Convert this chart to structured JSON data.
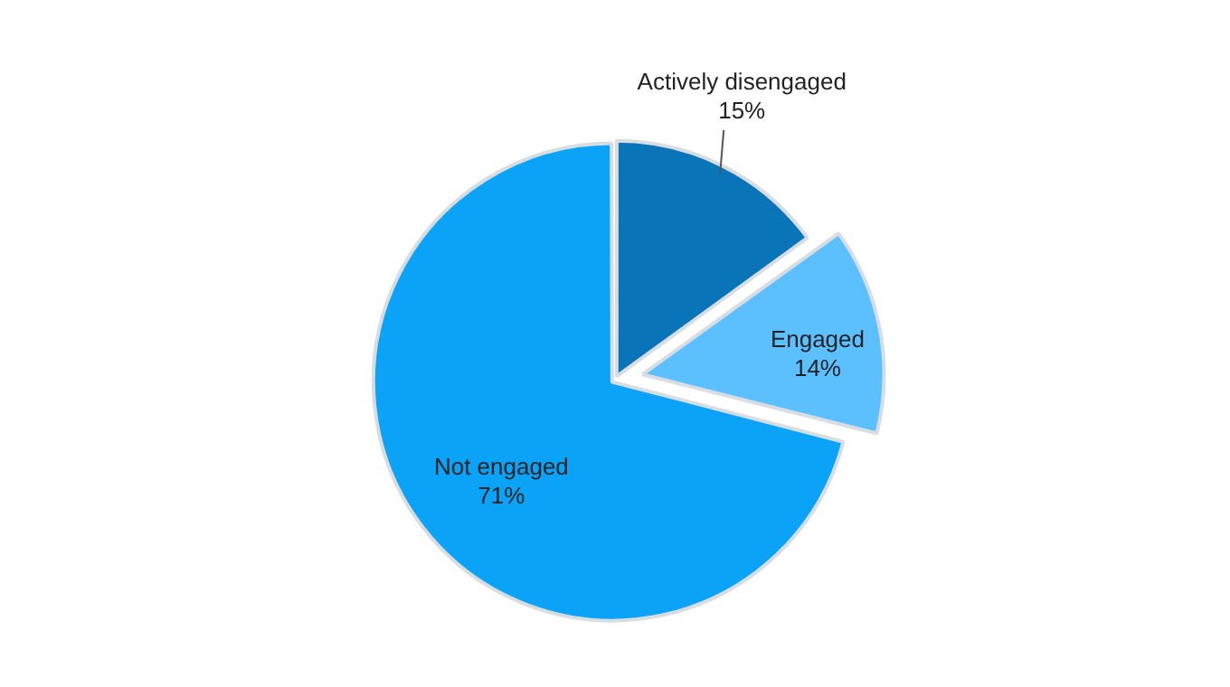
{
  "chart_data": {
    "type": "pie",
    "categories": [
      "Actively disengaged",
      "Engaged",
      "Not engaged"
    ],
    "values": [
      15,
      14,
      71
    ],
    "value_labels": [
      "15%",
      "14%",
      "71%"
    ],
    "colors": [
      "#0a74b8",
      "#5cc0ff",
      "#0aa3f7"
    ],
    "legend": false
  }
}
